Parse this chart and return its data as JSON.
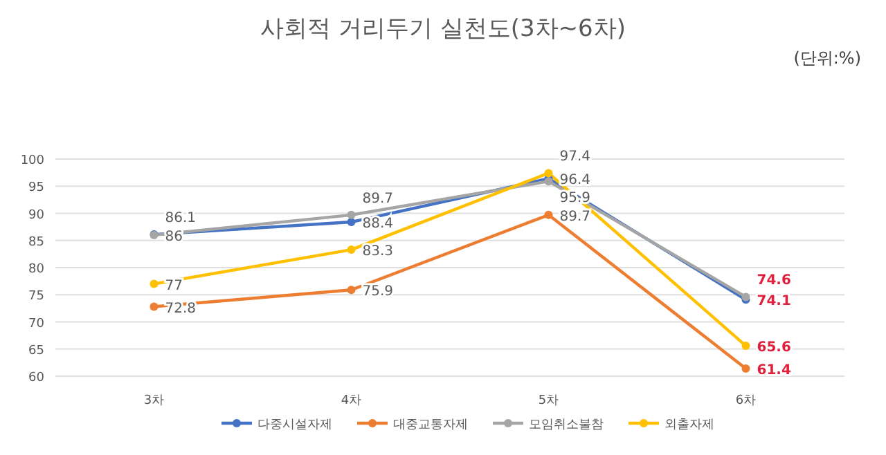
{
  "chart_data": {
    "type": "line",
    "title": "사회적 거리두기 실천도(3차~6차)",
    "annotations": [
      "(단위:%)"
    ],
    "categories": [
      "3차",
      "4차",
      "5차",
      "6차"
    ],
    "series": [
      {
        "name": "다중시설자제",
        "color": "#4472c4",
        "values": [
          86.1,
          88.4,
          96.4,
          74.1
        ]
      },
      {
        "name": "대중교통자제",
        "color": "#ed7d31",
        "values": [
          72.8,
          75.9,
          89.7,
          61.4
        ]
      },
      {
        "name": "모임취소불참",
        "color": "#a5a5a5",
        "values": [
          86,
          89.7,
          95.9,
          74.6
        ]
      },
      {
        "name": "외출자제",
        "color": "#ffc000",
        "values": [
          77,
          83.3,
          97.4,
          65.6
        ]
      }
    ],
    "ylim": [
      60,
      100
    ],
    "yticks": [
      60,
      65,
      70,
      75,
      80,
      85,
      90,
      95,
      100
    ],
    "grid": "y",
    "legend": "bottom",
    "marker": "circle",
    "line_style": "solid",
    "data_labels": true
  }
}
